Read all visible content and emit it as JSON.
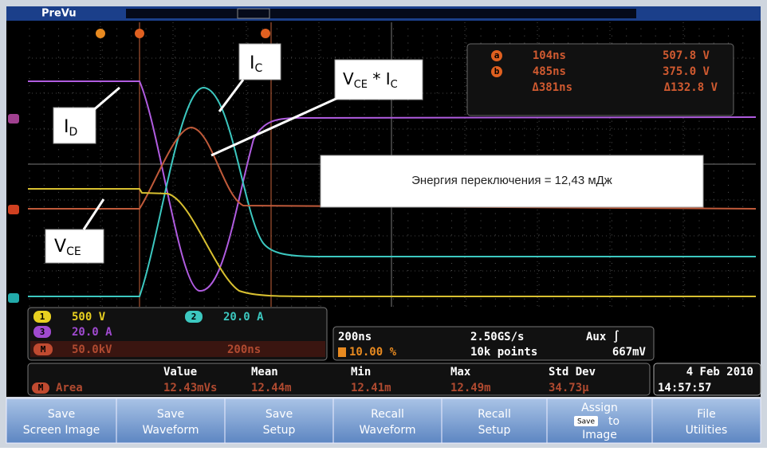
{
  "header": {
    "title": "PreVu"
  },
  "annotations": {
    "id": {
      "main": "I",
      "sub": "D"
    },
    "ic": {
      "main": "I",
      "sub": "C"
    },
    "vce": {
      "main": "V",
      "sub": "CE"
    },
    "vi": {
      "main1": "V",
      "sub1": "CE",
      "main2": " * I",
      "sub2": "C"
    }
  },
  "energy_label": "Энергия переключения = 12,43 мДж",
  "cursors": {
    "rows": [
      [
        "a",
        "104ns",
        "507.8 V"
      ],
      [
        "b",
        "485ns",
        "375.0 V"
      ],
      [
        "",
        "Δ381ns",
        "Δ132.8 V"
      ]
    ]
  },
  "channels": [
    {
      "id": "1",
      "scale": "500 V"
    },
    {
      "id": "2",
      "scale": "20.0 A"
    },
    {
      "id": "3",
      "scale": "20.0 A"
    },
    {
      "id": "M",
      "scale": "50.0kV",
      "time": "200ns"
    }
  ],
  "horizontal": {
    "timebase": "200ns",
    "rate": "2.50GS/s",
    "trigger": "Aux ∫",
    "position": "10.00 %",
    "record": "10k points",
    "level": "667mV"
  },
  "measurement": {
    "headers": [
      "Value",
      "Mean",
      "Min",
      "Max",
      "Std Dev"
    ],
    "source": "M",
    "name": "Area",
    "values": [
      "12.43mVs",
      "12.44m",
      "12.41m",
      "12.49m",
      "34.73µ"
    ]
  },
  "datetime": {
    "date": "4 Feb 2010",
    "time": "14:57:57"
  },
  "buttons": [
    [
      "Save",
      "Screen Image"
    ],
    [
      "Save",
      "Waveform"
    ],
    [
      "Save",
      "Setup"
    ],
    [
      "Recall",
      "Waveform"
    ],
    [
      "Recall",
      "Setup"
    ],
    [
      "Assign",
      "Save",
      "to",
      "Image"
    ],
    [
      "File",
      "Utilities"
    ]
  ]
}
